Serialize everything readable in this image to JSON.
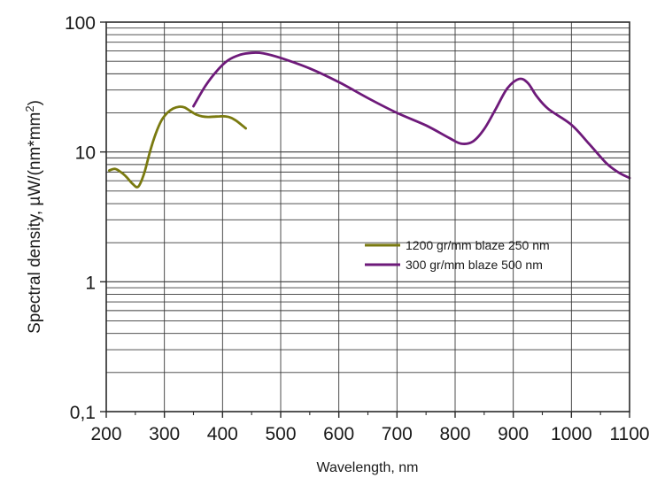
{
  "chart_data": {
    "type": "line",
    "xlabel": "Wavelength, nm",
    "ylabel_main": "Spectral density, µW/(nm*mm",
    "ylabel_sup": "2",
    "ylabel_close": ")",
    "xlim": [
      200,
      1100
    ],
    "ylim": [
      0.1,
      100
    ],
    "yscale": "log",
    "grid": true,
    "legend_position": "center-right",
    "x_ticks": [
      200,
      300,
      400,
      500,
      600,
      700,
      800,
      900,
      1000,
      1100
    ],
    "x_tick_labels": [
      "200",
      "300",
      "400",
      "500",
      "600",
      "700",
      "800",
      "900",
      "1000",
      "1100"
    ],
    "y_ticks": [
      0.1,
      1,
      10,
      100
    ],
    "y_tick_labels": [
      "0,1",
      "1",
      "10",
      "100"
    ],
    "series": [
      {
        "name": "1200 gr/mm blaze 250 nm",
        "color": "#7a7a10",
        "x": [
          205,
          215,
          225,
          235,
          245,
          255,
          265,
          275,
          285,
          295,
          305,
          315,
          325,
          335,
          345,
          355,
          365,
          375,
          385,
          395,
          405,
          415,
          425,
          440
        ],
        "y": [
          7.2,
          7.4,
          7.0,
          6.4,
          5.7,
          5.4,
          6.8,
          10.0,
          13.8,
          17.5,
          20.0,
          21.6,
          22.3,
          22.0,
          20.6,
          19.4,
          18.8,
          18.6,
          18.7,
          18.8,
          18.8,
          18.3,
          17.2,
          15.2
        ]
      },
      {
        "name": "300 gr/mm blaze 500 nm",
        "color": "#6e1a7a",
        "x": [
          350,
          370,
          390,
          410,
          430,
          450,
          470,
          500,
          550,
          600,
          650,
          700,
          750,
          790,
          810,
          830,
          850,
          870,
          890,
          910,
          925,
          940,
          960,
          1000,
          1030,
          1060,
          1080,
          1100
        ],
        "y": [
          22.5,
          32,
          42,
          51,
          56,
          58,
          57.5,
          53,
          44,
          34.5,
          26,
          20,
          16,
          12.8,
          11.6,
          12.0,
          15.0,
          21.5,
          31,
          36.5,
          34,
          27,
          21.5,
          16.2,
          11.6,
          8.2,
          7.0,
          6.3
        ]
      }
    ]
  }
}
